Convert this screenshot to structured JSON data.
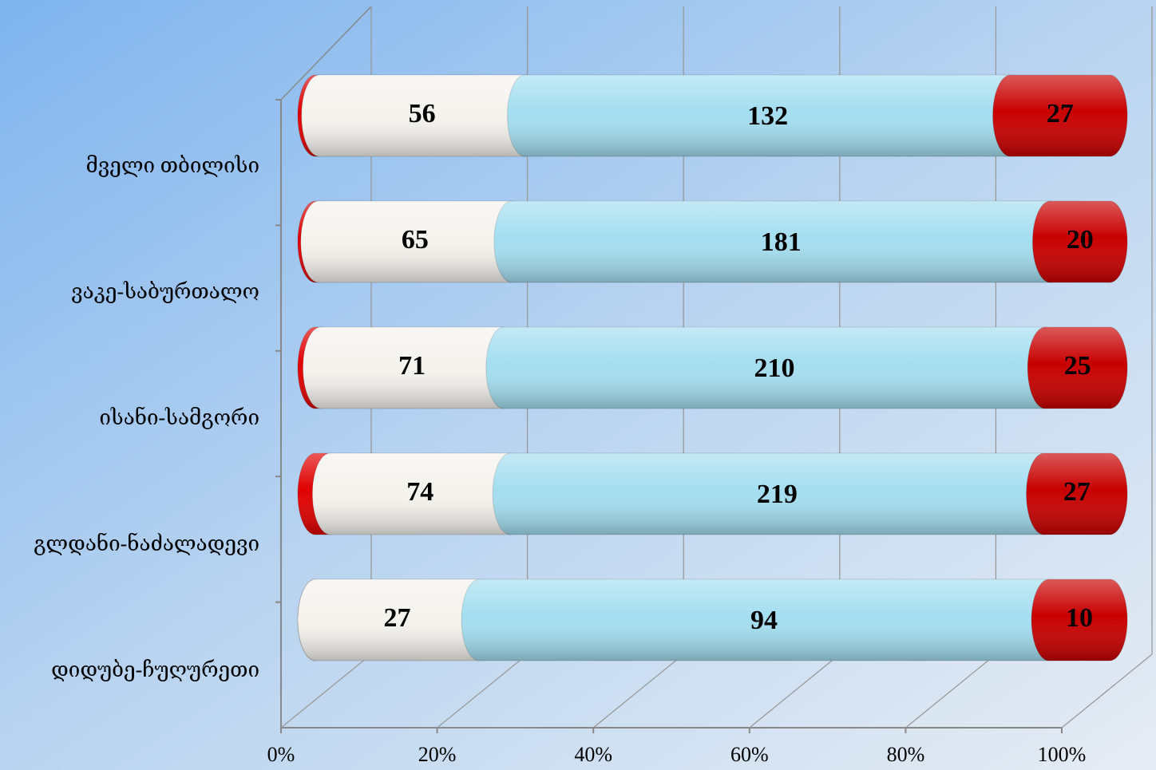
{
  "chart_data": {
    "type": "stacked-bar-100",
    "categories": [
      "მველი თბილისი",
      "ვაკე-საბურთალო",
      "ისანი-სამგორი",
      "გლდანი-ნაძალადევი",
      "დიდუბე-ჩუღურეთი"
    ],
    "series": [
      {
        "color": "#e00000",
        "values": [
          1,
          1,
          2,
          6,
          0
        ]
      },
      {
        "color": "#f5f3ee",
        "values": [
          56,
          65,
          71,
          74,
          27
        ]
      },
      {
        "color": "#a4def0",
        "values": [
          132,
          181,
          210,
          219,
          94
        ]
      },
      {
        "color": "#c80000",
        "values": [
          27,
          20,
          25,
          27,
          10
        ]
      }
    ],
    "xlim": [
      0,
      100
    ],
    "xticks": [
      {
        "value": 0,
        "label": "0%"
      },
      {
        "value": 20,
        "label": "20%"
      },
      {
        "value": 40,
        "label": "40%"
      },
      {
        "value": 60,
        "label": "60%"
      },
      {
        "value": 80,
        "label": "80%"
      },
      {
        "value": 100,
        "label": "100%"
      }
    ],
    "grid": true
  }
}
